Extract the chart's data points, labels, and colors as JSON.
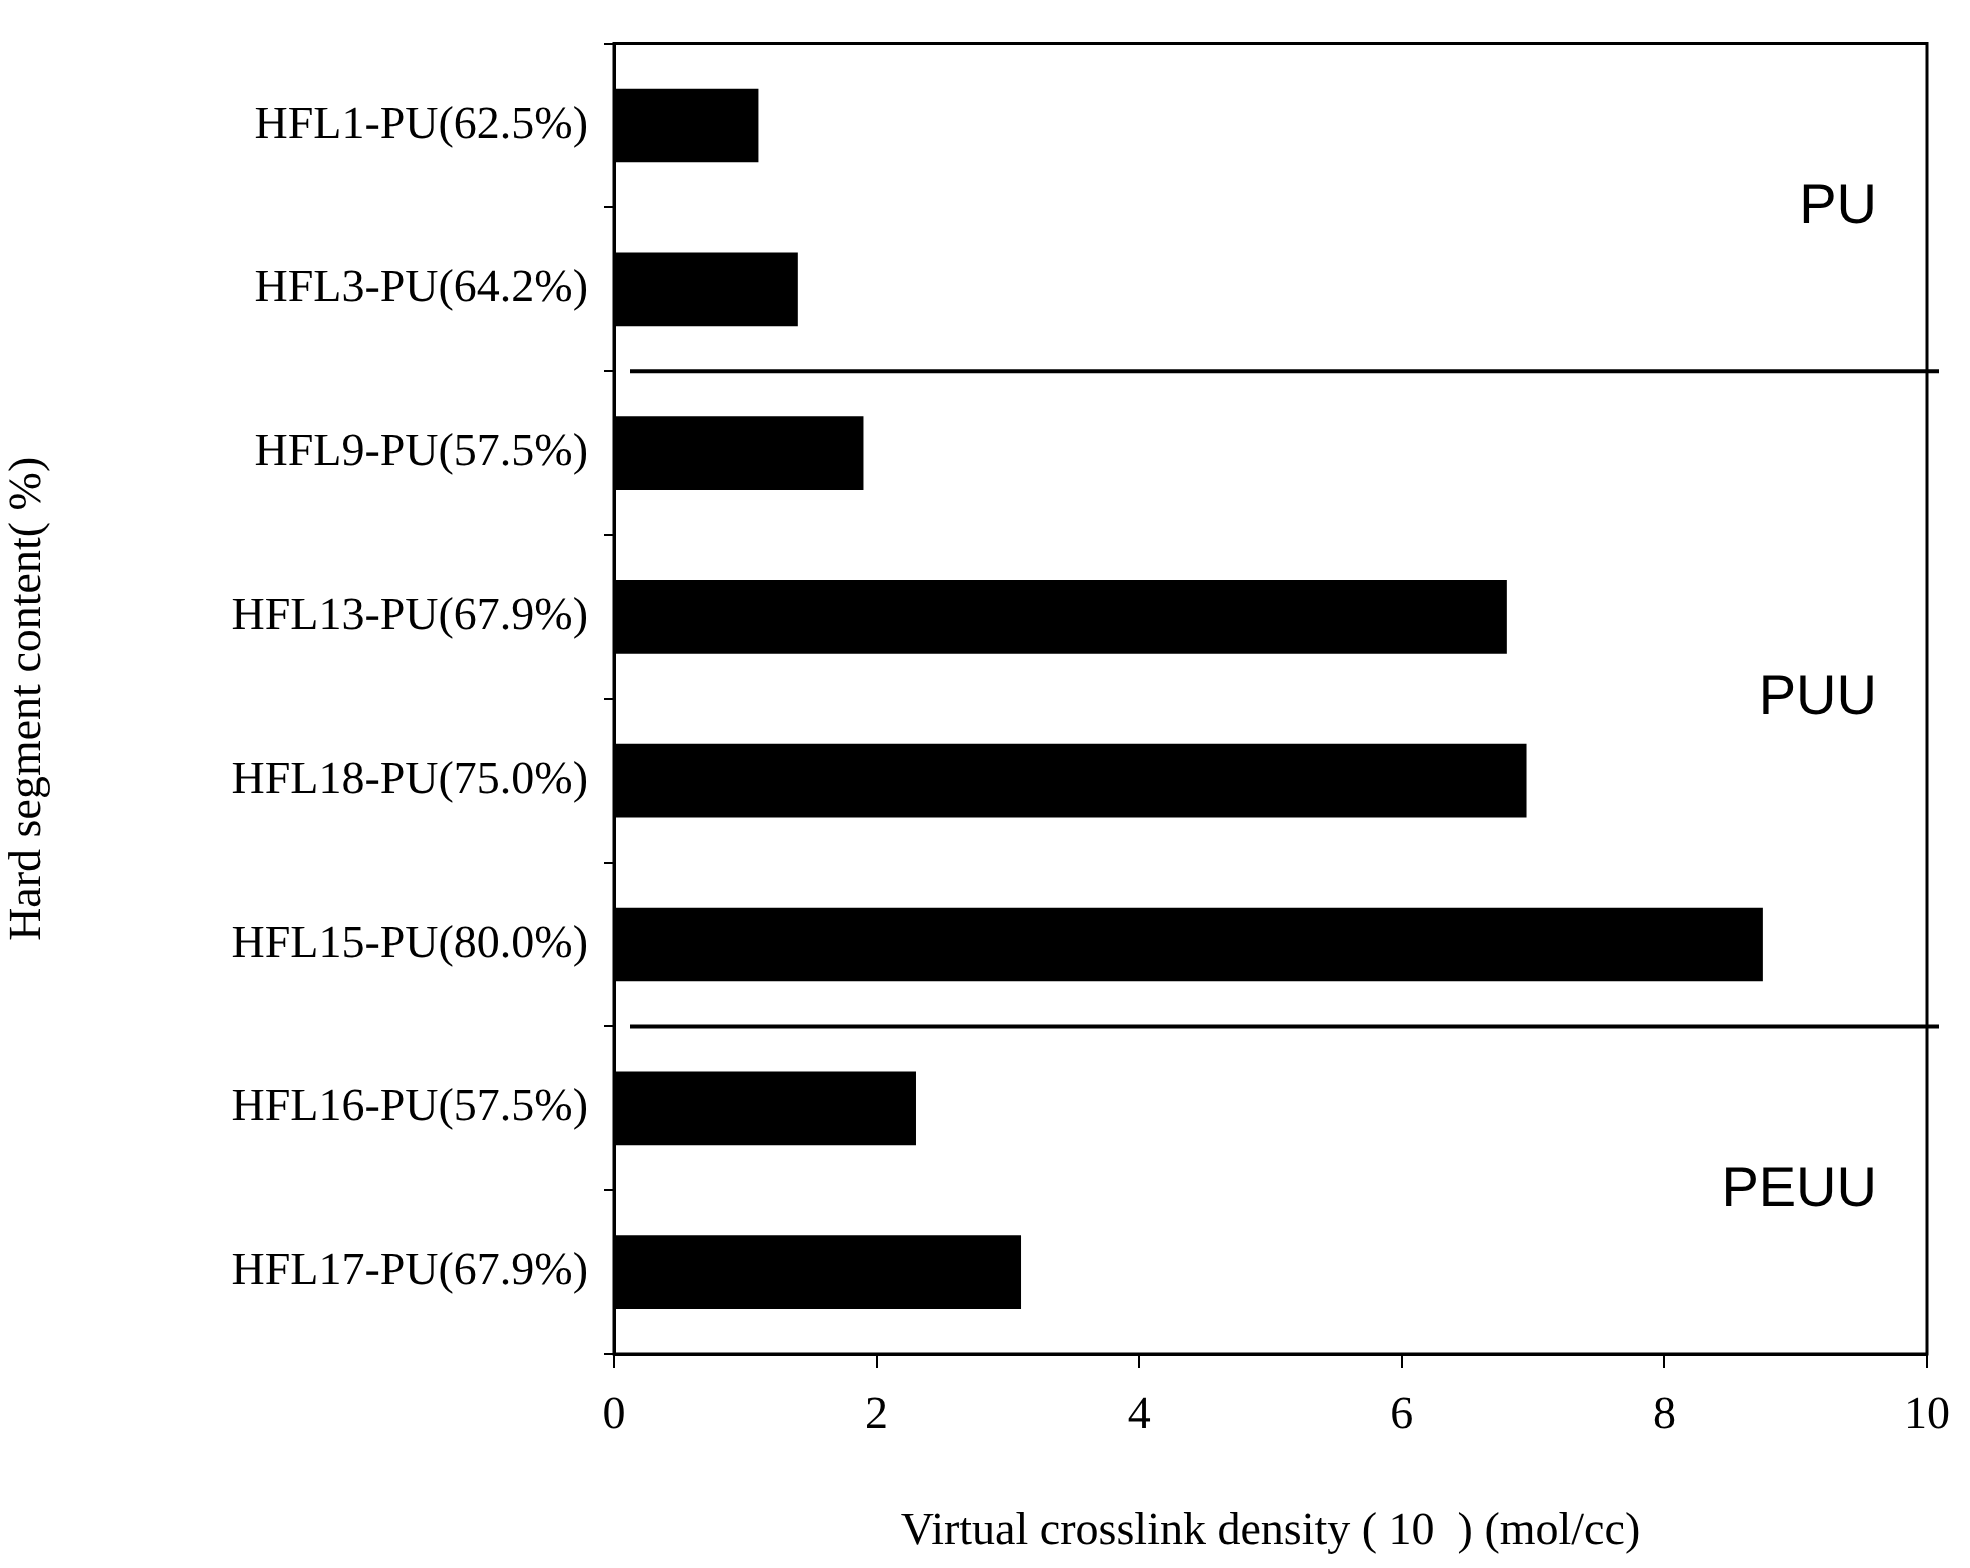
{
  "chart_data": {
    "type": "bar",
    "orientation": "horizontal",
    "categories": [
      "HFL1-PU(62.5%)",
      "HFL3-PU(64.2%)",
      "HFL9-PU(57.5%)",
      "HFL13-PU(67.9%)",
      "HFL18-PU(75.0%)",
      "HFL15-PU(80.0%)",
      "HFL16-PU(57.5%)",
      "HFL17-PU(67.9%)"
    ],
    "values": [
      1.1,
      1.4,
      1.9,
      6.8,
      6.95,
      8.75,
      2.3,
      3.1
    ],
    "color": "#000000",
    "xlim": [
      0,
      10
    ],
    "xticks": [
      0,
      2,
      4,
      6,
      8,
      10
    ],
    "xlabel": "Virtual crosslink density ( 10  ) (mol/cc)",
    "ylabel": "Hard segment content( %)",
    "annotations": [
      "PU",
      "PUU",
      "PEUU"
    ],
    "grid": false,
    "legend": false
  }
}
